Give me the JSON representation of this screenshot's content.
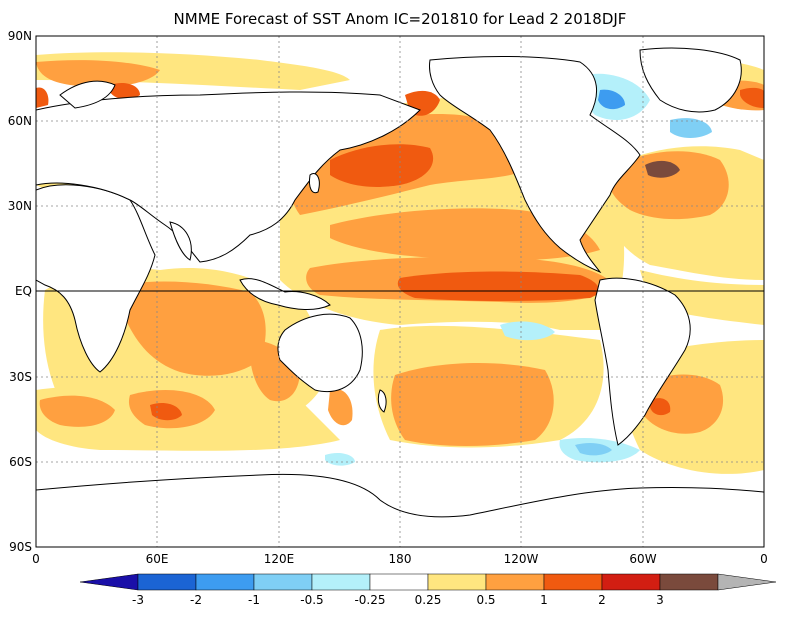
{
  "title": "NMME Forecast of SST Anom IC=201810 for Lead 2 2018DJF",
  "lat_labels": [
    "90N",
    "60N",
    "30N",
    "EQ",
    "30S",
    "60S",
    "90S"
  ],
  "lon_labels": [
    "0",
    "60E",
    "120E",
    "180",
    "120W",
    "60W",
    "0"
  ],
  "colorbar": {
    "labels": [
      "-3",
      "-2",
      "-1",
      "-0.5",
      "-0.25",
      "0.25",
      "0.5",
      "1",
      "2",
      "3"
    ],
    "colors": [
      "#1a0fa8",
      "#1b64d4",
      "#3d9cf0",
      "#7fcff5",
      "#b4f0fa",
      "#ffffff",
      "#ffe680",
      "#ffa040",
      "#f05a10",
      "#d21e12",
      "#7a4a3c",
      "#b4b4b4"
    ]
  },
  "map_colors": {
    "ocean_neutral": "#ffffff",
    "warm_light": "#ffe680",
    "warm_medium": "#ffa040",
    "warm_strong": "#f05a10",
    "warm_very_strong": "#d21e12",
    "warm_extreme": "#7a4a3c",
    "cool_light": "#b4f0fa",
    "cool_medium": "#7fcff5",
    "cool_strong": "#3d9cf0"
  }
}
